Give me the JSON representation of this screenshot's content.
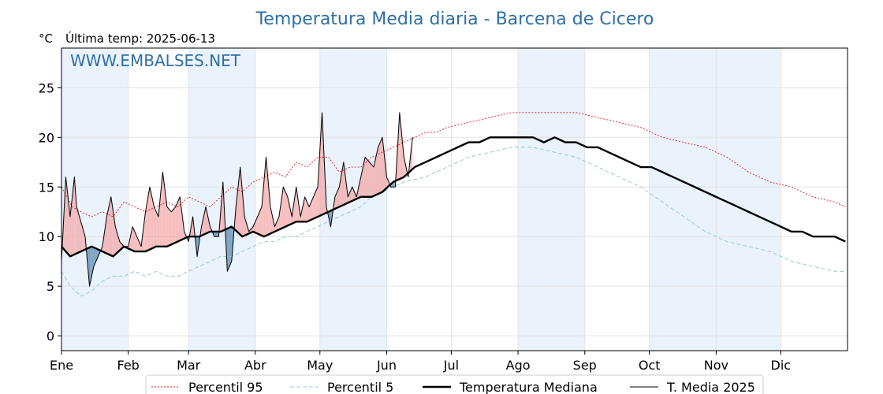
{
  "header": {
    "title": "Temperatura Media diaria - Barcena de Cicero",
    "unit": "°C",
    "last_temp": "Última temp: 2025-06-13",
    "watermark": "WWW.EMBALSES.NET"
  },
  "colors": {
    "title": "#2e6fa7",
    "p95": "#e31a1c",
    "p5": "#9ecae1",
    "median": "#000000",
    "current": "#000000",
    "above_fill": "#f4a3a3",
    "below_fill": "#2f6aa0",
    "shade": "#eaf2fb"
  },
  "chart_data": {
    "type": "line",
    "title": "Temperatura Media diaria - Barcena de Cicero",
    "ylabel": "°C",
    "ylim": [
      -1.5,
      29
    ],
    "yticks": [
      0,
      5,
      10,
      15,
      20,
      25
    ],
    "grid": true,
    "legend_position": "bottom",
    "months": [
      "Ene",
      "Feb",
      "Mar",
      "Abr",
      "May",
      "Jun",
      "Jul",
      "Ago",
      "Sep",
      "Oct",
      "Nov",
      "Dic"
    ],
    "month_start_days": [
      1,
      32,
      60,
      91,
      121,
      152,
      182,
      213,
      244,
      274,
      305,
      335
    ],
    "shaded_months": [
      0,
      2,
      4,
      7,
      9,
      10
    ],
    "series": [
      {
        "name": "Percentil 95",
        "style": "dotted-red",
        "x": [
          1,
          6,
          10,
          15,
          20,
          25,
          30,
          35,
          40,
          45,
          50,
          55,
          60,
          65,
          70,
          75,
          80,
          85,
          90,
          95,
          100,
          105,
          110,
          115,
          120,
          125,
          130,
          135,
          140,
          145,
          150,
          155,
          160,
          165,
          170,
          175,
          180,
          190,
          200,
          210,
          215,
          220,
          230,
          240,
          250,
          260,
          270,
          280,
          290,
          300,
          310,
          320,
          330,
          340,
          350,
          360,
          365
        ],
        "y": [
          15,
          13,
          12.5,
          12,
          12.5,
          12,
          13.5,
          13,
          12.5,
          13,
          13.5,
          13,
          14,
          13.5,
          13,
          14,
          15,
          14.5,
          15.5,
          16,
          16.5,
          16,
          17.5,
          17,
          18,
          18,
          16.5,
          17,
          17,
          18,
          18.5,
          19,
          19.5,
          20,
          20.5,
          20.5,
          21,
          21.5,
          22,
          22.5,
          22.5,
          22.5,
          22.5,
          22.5,
          22,
          21.5,
          21,
          20,
          19.5,
          19,
          18,
          16.5,
          15.5,
          15,
          14,
          13.5,
          13
        ]
      },
      {
        "name": "Percentil 5",
        "style": "dashed-lightblue",
        "x": [
          1,
          5,
          10,
          15,
          20,
          25,
          30,
          35,
          40,
          45,
          50,
          55,
          60,
          65,
          70,
          75,
          80,
          85,
          90,
          95,
          100,
          105,
          110,
          115,
          120,
          125,
          130,
          135,
          140,
          145,
          150,
          155,
          160,
          170,
          180,
          190,
          200,
          210,
          215,
          220,
          230,
          240,
          250,
          260,
          270,
          280,
          290,
          300,
          310,
          320,
          330,
          340,
          350,
          360,
          365
        ],
        "y": [
          6.5,
          5,
          4,
          4.5,
          5.5,
          6,
          6,
          6.5,
          6,
          6.5,
          6,
          6,
          6.5,
          7,
          7.5,
          8,
          8,
          8.5,
          9,
          9.5,
          9.5,
          10,
          10,
          10.5,
          11,
          11.5,
          12,
          12.5,
          13,
          14,
          14.5,
          15,
          15.5,
          16,
          17,
          18,
          18.5,
          19,
          19,
          19,
          18.5,
          18,
          17,
          16,
          15,
          13.5,
          12,
          10.5,
          9.5,
          9,
          8.5,
          7.5,
          7,
          6.5,
          6.5
        ]
      },
      {
        "name": "Temperatura Mediana",
        "style": "thick-black",
        "x": [
          1,
          5,
          10,
          15,
          20,
          25,
          30,
          35,
          40,
          45,
          50,
          55,
          60,
          65,
          70,
          75,
          80,
          85,
          90,
          95,
          100,
          105,
          110,
          115,
          120,
          125,
          130,
          135,
          140,
          145,
          150,
          155,
          160,
          165,
          170,
          175,
          180,
          185,
          190,
          195,
          200,
          205,
          210,
          215,
          220,
          225,
          230,
          235,
          240,
          245,
          250,
          255,
          260,
          265,
          270,
          275,
          280,
          285,
          290,
          295,
          300,
          305,
          310,
          315,
          320,
          325,
          330,
          335,
          340,
          345,
          350,
          355,
          360,
          365
        ],
        "y": [
          9,
          8,
          8.5,
          9,
          8.5,
          8,
          9,
          8.5,
          8.5,
          9,
          9,
          9.5,
          10,
          10,
          10.5,
          10.5,
          11,
          10,
          10.5,
          10,
          10.5,
          11,
          11.5,
          11.5,
          12,
          12.5,
          13,
          13.5,
          14,
          14,
          14.5,
          15.5,
          16,
          17,
          17.5,
          18,
          18.5,
          19,
          19.5,
          19.5,
          20,
          20,
          20,
          20,
          20,
          19.5,
          20,
          19.5,
          19.5,
          19,
          19,
          18.5,
          18,
          17.5,
          17,
          17,
          16.5,
          16,
          15.5,
          15,
          14.5,
          14,
          13.5,
          13,
          12.5,
          12,
          11.5,
          11,
          10.5,
          10.5,
          10,
          10,
          10,
          9.5
        ]
      },
      {
        "name": "T. Media 2025",
        "style": "thin-black",
        "x": [
          1,
          3,
          5,
          7,
          8,
          10,
          12,
          14,
          16,
          18,
          20,
          22,
          24,
          26,
          28,
          30,
          32,
          34,
          36,
          38,
          40,
          42,
          44,
          46,
          48,
          50,
          52,
          54,
          56,
          58,
          60,
          62,
          64,
          66,
          68,
          70,
          72,
          74,
          76,
          78,
          80,
          82,
          84,
          86,
          88,
          90,
          92,
          94,
          96,
          98,
          100,
          102,
          104,
          106,
          108,
          110,
          112,
          114,
          116,
          118,
          120,
          122,
          124,
          126,
          128,
          130,
          132,
          134,
          136,
          138,
          140,
          142,
          144,
          146,
          148,
          150,
          152,
          154,
          156,
          158,
          160,
          162,
          164
        ],
        "y": [
          7.5,
          16,
          12,
          16,
          13,
          11.5,
          10,
          5,
          7,
          8,
          9,
          12,
          14,
          11,
          9.5,
          9,
          9,
          11,
          10,
          9,
          12.5,
          15,
          13,
          12,
          16.5,
          13,
          12.5,
          13,
          14,
          10.5,
          9.5,
          12,
          8,
          11,
          13,
          11,
          10,
          10,
          15.5,
          6.5,
          7.5,
          13,
          17,
          12,
          10.5,
          11,
          12,
          13,
          18,
          13,
          11,
          12,
          15,
          14,
          12,
          15,
          12,
          14,
          13,
          14,
          15,
          22.5,
          13,
          11,
          14,
          15,
          17.5,
          14,
          15,
          14,
          16,
          18,
          17.5,
          17,
          19,
          20,
          16,
          15,
          15,
          22.5,
          18,
          16,
          20
        ]
      }
    ]
  },
  "legend": {
    "items": [
      "Percentil 95",
      "Percentil 5",
      "Temperatura Mediana",
      "T. Media 2025"
    ]
  }
}
